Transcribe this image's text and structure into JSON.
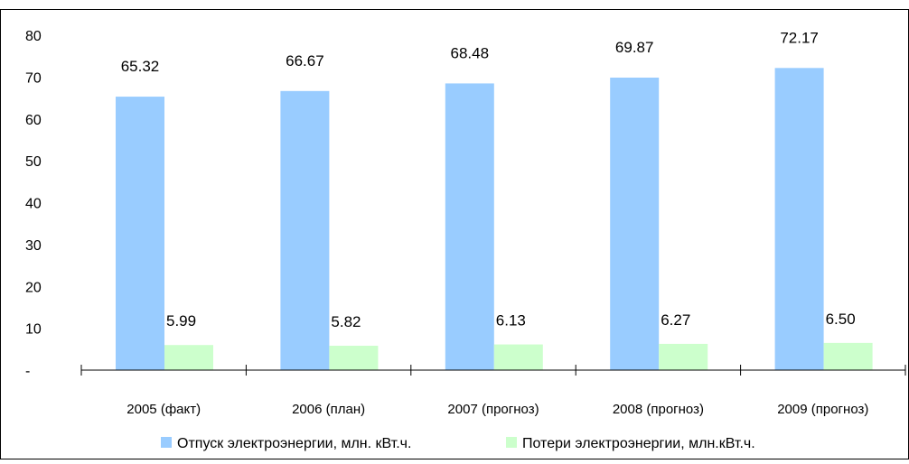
{
  "chart_data": {
    "type": "bar",
    "title": "",
    "xlabel": "",
    "ylabel": "",
    "ylim": [
      0,
      80
    ],
    "yticks": [
      {
        "value": 0,
        "label": "-"
      },
      {
        "value": 10,
        "label": "10"
      },
      {
        "value": 20,
        "label": "20"
      },
      {
        "value": 30,
        "label": "30"
      },
      {
        "value": 40,
        "label": "40"
      },
      {
        "value": 50,
        "label": "50"
      },
      {
        "value": 60,
        "label": "60"
      },
      {
        "value": 70,
        "label": "70"
      },
      {
        "value": 80,
        "label": "80"
      }
    ],
    "grid": false,
    "legend_position": "bottom",
    "categories": [
      "2005 (факт)",
      "2006 (план)",
      "2007 (прогноз)",
      "2008 (прогноз)",
      "2009 (прогноз)"
    ],
    "series": [
      {
        "name": "Отпуск электроэнергии, млн. кВт.ч.",
        "color": "#99ccff",
        "values": [
          65.32,
          66.67,
          68.48,
          69.87,
          72.17
        ],
        "labels": [
          "65.32",
          "66.67",
          "68.48",
          "69.87",
          "72.17"
        ]
      },
      {
        "name": "Потери электроэнергии, млн.кВт.ч.",
        "color": "#ccffcc",
        "values": [
          5.99,
          5.82,
          6.13,
          6.27,
          6.5
        ],
        "labels": [
          "5.99",
          "5.82",
          "6.13",
          "6.27",
          "6.50"
        ]
      }
    ]
  }
}
